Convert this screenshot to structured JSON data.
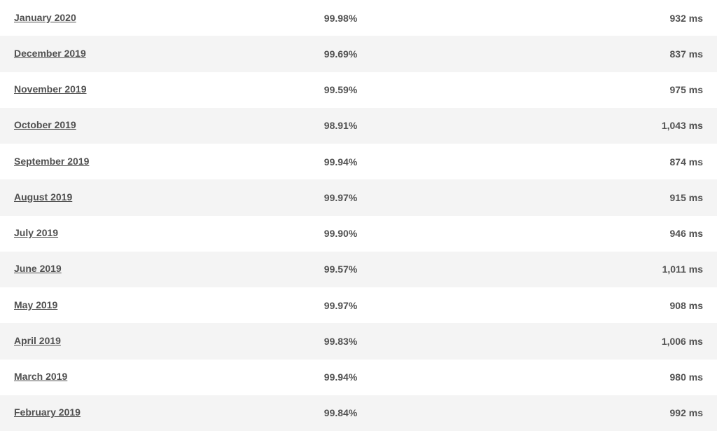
{
  "table": {
    "background_color_odd": "#ffffff",
    "background_color_even": "#f4f4f4",
    "text_color": "#525252",
    "link_color": "#505050",
    "font_size": 14,
    "font_weight": "bold",
    "font_family": "Verdana, Geneva, sans-serif",
    "row_height": 51.25,
    "columns": [
      "month",
      "uptime_percent",
      "response_time"
    ],
    "rows": [
      {
        "month": "January 2020",
        "percent": "99.98%",
        "time": "932 ms"
      },
      {
        "month": "December 2019",
        "percent": "99.69%",
        "time": "837 ms"
      },
      {
        "month": "November 2019",
        "percent": "99.59%",
        "time": "975 ms"
      },
      {
        "month": "October 2019",
        "percent": "98.91%",
        "time": "1,043 ms"
      },
      {
        "month": "September 2019",
        "percent": "99.94%",
        "time": "874 ms"
      },
      {
        "month": "August 2019",
        "percent": "99.97%",
        "time": "915 ms"
      },
      {
        "month": "July 2019",
        "percent": "99.90%",
        "time": "946 ms"
      },
      {
        "month": "June 2019",
        "percent": "99.57%",
        "time": "1,011 ms"
      },
      {
        "month": "May 2019",
        "percent": "99.97%",
        "time": "908 ms"
      },
      {
        "month": "April 2019",
        "percent": "99.83%",
        "time": "1,006 ms"
      },
      {
        "month": "March 2019",
        "percent": "99.94%",
        "time": "980 ms"
      },
      {
        "month": "February 2019",
        "percent": "99.84%",
        "time": "992 ms"
      }
    ]
  }
}
